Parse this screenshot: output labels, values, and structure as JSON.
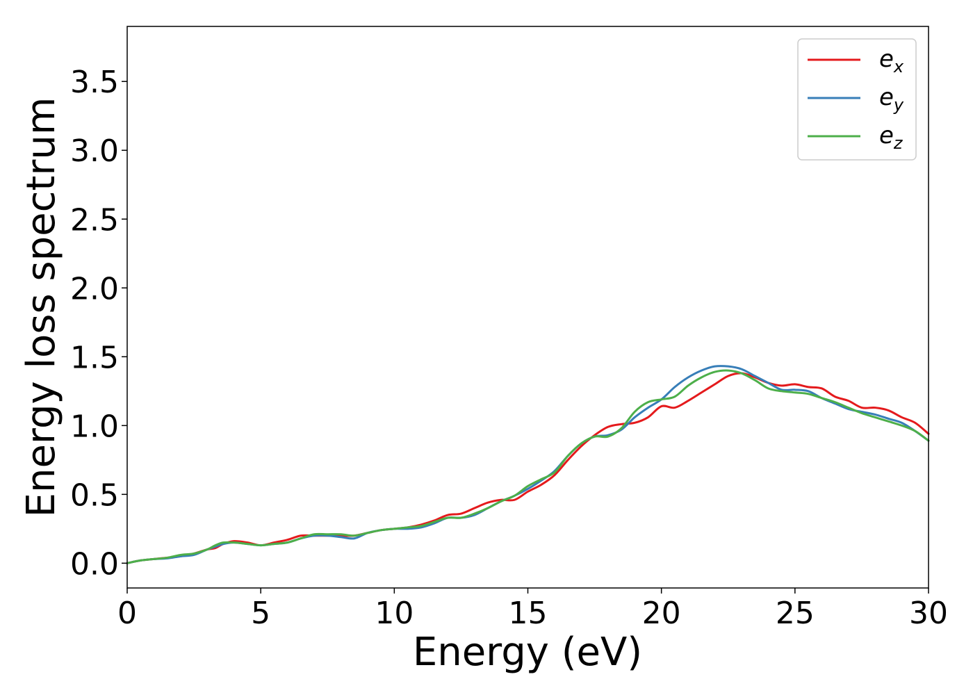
{
  "chart_data": {
    "type": "line",
    "xlabel": "Energy (eV)",
    "ylabel": "Energy loss spectrum",
    "xlim": [
      0,
      30
    ],
    "ylim": [
      -0.18,
      3.9
    ],
    "xticks": [
      0,
      5,
      10,
      15,
      20,
      25,
      30
    ],
    "yticks": [
      0.0,
      0.5,
      1.0,
      1.5,
      2.0,
      2.5,
      3.0,
      3.5
    ],
    "xtick_labels": [
      "0",
      "5",
      "10",
      "15",
      "20",
      "25",
      "30"
    ],
    "ytick_labels": [
      "0.0",
      "0.5",
      "1.0",
      "1.5",
      "2.0",
      "2.5",
      "3.0",
      "3.5"
    ],
    "grid": false,
    "legend_position": "top-right",
    "series": [
      {
        "name": "e",
        "subscript": "x",
        "color": "#e41a1c",
        "x": [
          0,
          0.5,
          1,
          1.5,
          2,
          2.5,
          3,
          3.3,
          3.6,
          4,
          4.5,
          5,
          5.5,
          6,
          6.5,
          7,
          7.5,
          8,
          8.5,
          9,
          9.5,
          10,
          10.5,
          11,
          11.5,
          12,
          12.5,
          13,
          13.5,
          14,
          14.5,
          15,
          15.5,
          16,
          16.5,
          17,
          17.5,
          18,
          18.5,
          19,
          19.5,
          20,
          20.5,
          21,
          21.5,
          22,
          22.5,
          23,
          23.5,
          24,
          24.5,
          25,
          25.5,
          26,
          26.5,
          27,
          27.5,
          28,
          28.5,
          29,
          29.5,
          30
        ],
        "y": [
          0.0,
          0.02,
          0.03,
          0.04,
          0.05,
          0.07,
          0.1,
          0.11,
          0.14,
          0.16,
          0.15,
          0.13,
          0.15,
          0.17,
          0.2,
          0.2,
          0.2,
          0.2,
          0.2,
          0.22,
          0.24,
          0.25,
          0.26,
          0.28,
          0.31,
          0.35,
          0.36,
          0.4,
          0.44,
          0.46,
          0.46,
          0.52,
          0.57,
          0.64,
          0.75,
          0.85,
          0.93,
          0.99,
          1.01,
          1.02,
          1.06,
          1.14,
          1.13,
          1.18,
          1.24,
          1.3,
          1.36,
          1.38,
          1.35,
          1.31,
          1.29,
          1.3,
          1.28,
          1.27,
          1.21,
          1.18,
          1.13,
          1.13,
          1.11,
          1.06,
          1.02,
          0.94
        ]
      },
      {
        "name": "e",
        "subscript": "y",
        "color": "#377eb8",
        "x": [
          0,
          0.5,
          1,
          1.5,
          2,
          2.5,
          3,
          3.3,
          3.6,
          4,
          4.5,
          5,
          5.5,
          6,
          6.5,
          7,
          7.5,
          8,
          8.5,
          9,
          9.5,
          10,
          10.5,
          11,
          11.5,
          12,
          12.5,
          13,
          13.5,
          14,
          14.5,
          15,
          15.5,
          16,
          16.5,
          17,
          17.5,
          18,
          18.5,
          19,
          19.5,
          20,
          20.5,
          21,
          21.5,
          22,
          22.5,
          23,
          23.5,
          24,
          24.5,
          25,
          25.5,
          26,
          26.5,
          27,
          27.5,
          28,
          28.5,
          29,
          29.5,
          30
        ],
        "y": [
          0.0,
          0.02,
          0.03,
          0.035,
          0.05,
          0.06,
          0.1,
          0.12,
          0.14,
          0.15,
          0.14,
          0.13,
          0.14,
          0.15,
          0.18,
          0.2,
          0.2,
          0.19,
          0.18,
          0.22,
          0.24,
          0.25,
          0.25,
          0.26,
          0.29,
          0.33,
          0.33,
          0.35,
          0.4,
          0.45,
          0.49,
          0.54,
          0.6,
          0.67,
          0.78,
          0.87,
          0.92,
          0.93,
          0.97,
          1.06,
          1.13,
          1.19,
          1.28,
          1.35,
          1.4,
          1.43,
          1.43,
          1.41,
          1.36,
          1.31,
          1.26,
          1.26,
          1.25,
          1.2,
          1.16,
          1.12,
          1.1,
          1.08,
          1.05,
          1.02,
          0.96,
          0.89
        ]
      },
      {
        "name": "e",
        "subscript": "z",
        "color": "#4daf4a",
        "x": [
          0,
          0.5,
          1,
          1.5,
          2,
          2.5,
          3,
          3.3,
          3.6,
          4,
          4.5,
          5,
          5.5,
          6,
          6.5,
          7,
          7.5,
          8,
          8.5,
          9,
          9.5,
          10,
          10.5,
          11,
          11.5,
          12,
          12.5,
          13,
          13.5,
          14,
          14.5,
          15,
          15.5,
          16,
          16.5,
          17,
          17.5,
          18,
          18.5,
          19,
          19.5,
          20,
          20.5,
          21,
          21.5,
          22,
          22.5,
          23,
          23.5,
          24,
          24.5,
          25,
          25.5,
          26,
          26.5,
          27,
          27.5,
          28,
          28.5,
          29,
          29.5,
          30
        ],
        "y": [
          0.0,
          0.02,
          0.03,
          0.04,
          0.06,
          0.07,
          0.1,
          0.13,
          0.15,
          0.15,
          0.14,
          0.13,
          0.14,
          0.15,
          0.18,
          0.21,
          0.21,
          0.21,
          0.2,
          0.22,
          0.24,
          0.25,
          0.26,
          0.27,
          0.3,
          0.33,
          0.33,
          0.36,
          0.4,
          0.45,
          0.49,
          0.56,
          0.61,
          0.66,
          0.78,
          0.87,
          0.92,
          0.92,
          0.98,
          1.1,
          1.17,
          1.19,
          1.21,
          1.29,
          1.35,
          1.39,
          1.4,
          1.38,
          1.33,
          1.27,
          1.25,
          1.24,
          1.23,
          1.2,
          1.17,
          1.13,
          1.09,
          1.06,
          1.03,
          1.0,
          0.96,
          0.89
        ]
      }
    ]
  }
}
